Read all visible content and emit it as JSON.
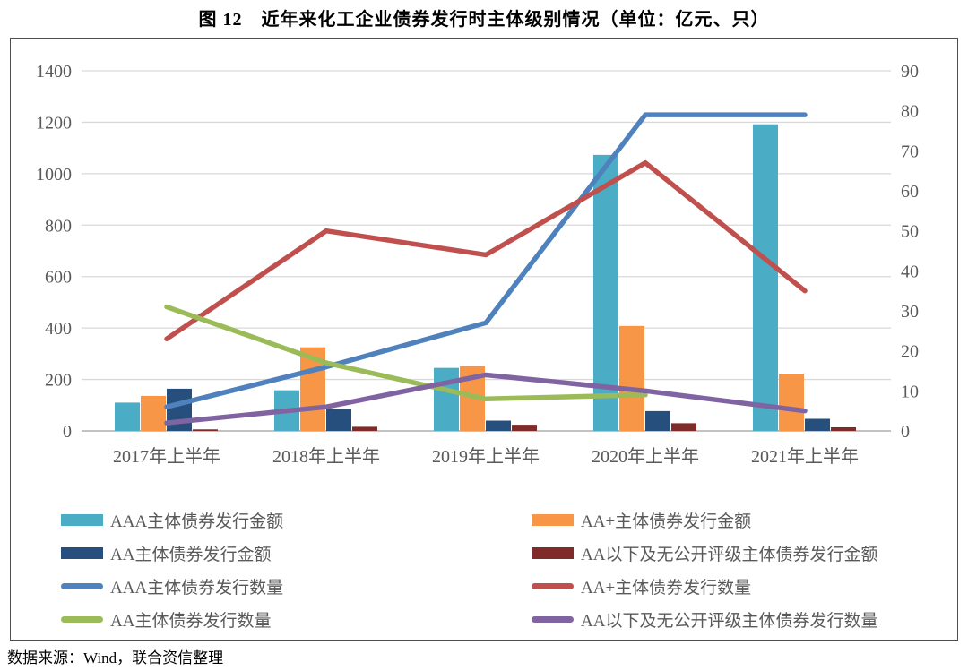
{
  "page": {
    "title": "图 12　近年来化工企业债券发行时主体级别情况（单位：亿元、只）",
    "source_note": "数据来源：Wind，联合资信整理"
  },
  "chart_data": {
    "type": "bar+line combo (bars on left axis, lines on right axis)",
    "title": "图 12 近年来化工企业债券发行时主体级别情况（单位：亿元、只）",
    "categories": [
      "2017年上半年",
      "2018年上半年",
      "2019年上半年",
      "2020年上半年",
      "2021年上半年"
    ],
    "left_axis": {
      "unit": "亿元",
      "min": 0,
      "max": 1400,
      "step": 200,
      "ticks": [
        0,
        200,
        400,
        600,
        800,
        1000,
        1200,
        1400
      ]
    },
    "right_axis": {
      "unit": "只",
      "min": 0,
      "max": 90,
      "step": 10,
      "ticks": [
        0,
        10,
        20,
        30,
        40,
        50,
        60,
        70,
        80,
        90
      ]
    },
    "grid": "horizontal gridlines on left-axis ticks",
    "legend_position": "bottom, two columns",
    "bar_series": [
      {
        "name": "AAA主体债券发行金额",
        "color": "#4BACC6",
        "axis": "left",
        "values": [
          110,
          158,
          245,
          1073,
          1192
        ]
      },
      {
        "name": "AA+主体债券发行金额",
        "color": "#F79646",
        "axis": "left",
        "values": [
          136,
          325,
          252,
          408,
          222
        ]
      },
      {
        "name": "AA主体债券发行金额",
        "color": "#264F7E",
        "axis": "left",
        "values": [
          164,
          85,
          40,
          77,
          47
        ]
      },
      {
        "name": "AA以下及无公开评级主体债券发行金额",
        "color": "#7F2B2A",
        "axis": "left",
        "values": [
          6,
          16,
          24,
          30,
          14
        ]
      }
    ],
    "line_series": [
      {
        "name": "AAA主体债券发行数量",
        "color": "#4F81BD",
        "axis": "right",
        "values": [
          6,
          16,
          27,
          79,
          79
        ]
      },
      {
        "name": "AA+主体债券发行数量",
        "color": "#C0504D",
        "axis": "right",
        "values": [
          23,
          50,
          44,
          67,
          35
        ]
      },
      {
        "name": "AA主体债券发行数量",
        "color": "#9BBB59",
        "axis": "right",
        "values": [
          31,
          17,
          8,
          9,
          null
        ]
      },
      {
        "name": "AA以下及无公开评级主体债券发行数量",
        "color": "#8064A2",
        "axis": "right",
        "values": [
          2,
          6,
          14,
          10,
          5
        ]
      }
    ]
  }
}
